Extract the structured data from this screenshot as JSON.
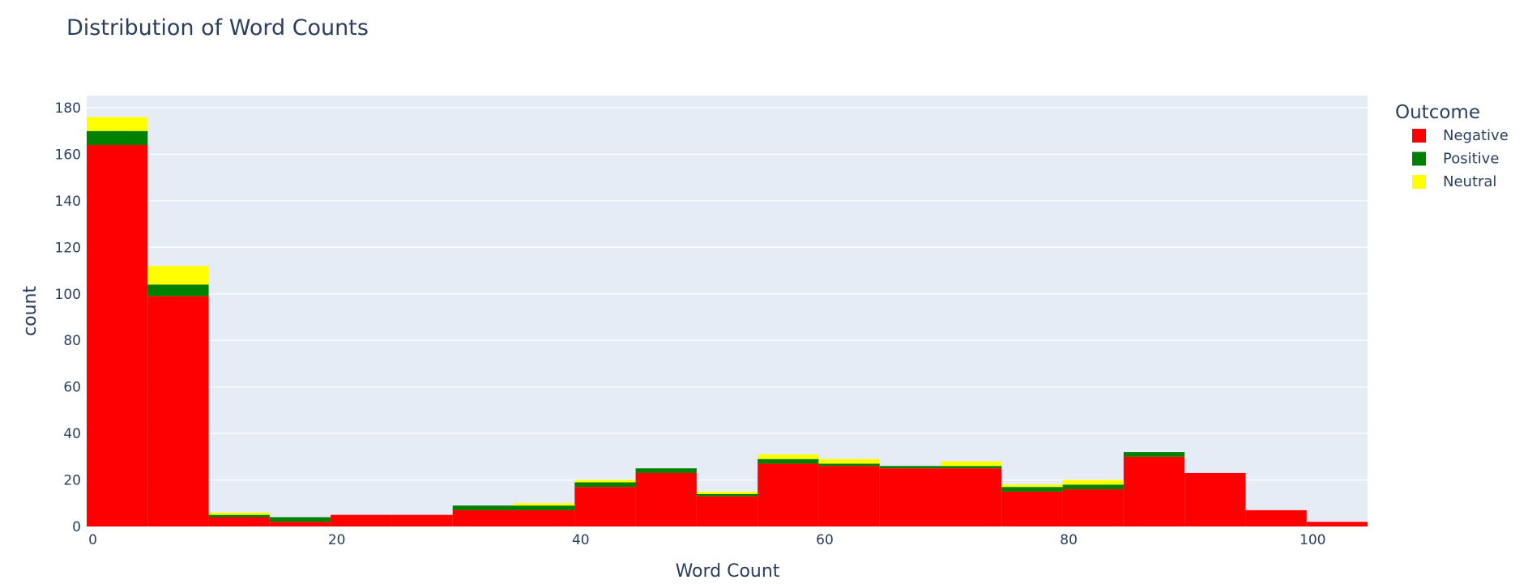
{
  "chart_data": {
    "type": "bar",
    "title": "Distribution of Word Counts",
    "xlabel": "Word Count",
    "ylabel": "count",
    "xlim": [
      -0.5,
      104.5
    ],
    "ylim": [
      0,
      180
    ],
    "x_ticks": [
      0,
      20,
      40,
      60,
      80,
      100
    ],
    "y_ticks": [
      0,
      20,
      40,
      60,
      80,
      100,
      120,
      140,
      160,
      180
    ],
    "grid": true,
    "stacked": true,
    "bins": [
      [
        -0.5,
        4.5
      ],
      [
        4.5,
        9.5
      ],
      [
        9.5,
        14.5
      ],
      [
        14.5,
        19.5
      ],
      [
        19.5,
        24.5
      ],
      [
        24.5,
        29.5
      ],
      [
        29.5,
        34.5
      ],
      [
        34.5,
        39.5
      ],
      [
        39.5,
        44.5
      ],
      [
        44.5,
        49.5
      ],
      [
        49.5,
        54.5
      ],
      [
        54.5,
        59.5
      ],
      [
        59.5,
        64.5
      ],
      [
        64.5,
        69.5
      ],
      [
        69.5,
        74.5
      ],
      [
        74.5,
        79.5
      ],
      [
        79.5,
        84.5
      ],
      [
        84.5,
        89.5
      ],
      [
        89.5,
        94.5
      ],
      [
        94.5,
        99.5
      ],
      [
        99.5,
        104.5
      ]
    ],
    "legend": {
      "title": "Outcome",
      "position": "top-right"
    },
    "series": [
      {
        "name": "Negative",
        "color": "#ff0000",
        "values": [
          164,
          99,
          4,
          2,
          5,
          5,
          7,
          7,
          17,
          23,
          13,
          27,
          26,
          25,
          25,
          15,
          16,
          30,
          23,
          7,
          2
        ]
      },
      {
        "name": "Positive",
        "color": "#008000",
        "values": [
          6,
          5,
          1,
          2,
          0,
          0,
          2,
          2,
          2,
          2,
          1,
          2,
          1,
          1,
          1,
          2,
          2,
          2,
          0,
          0,
          0
        ]
      },
      {
        "name": "Neutral",
        "color": "#ffff00",
        "values": [
          6,
          8,
          1,
          0,
          0,
          0,
          0,
          1,
          1,
          0,
          1,
          2,
          2,
          0,
          2,
          1,
          2,
          0,
          0,
          0,
          0
        ]
      }
    ]
  }
}
